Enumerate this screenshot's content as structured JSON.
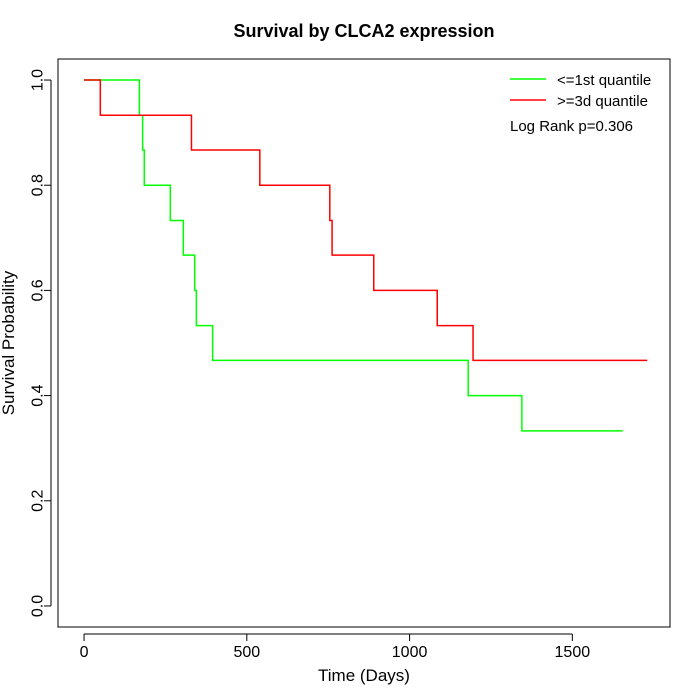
{
  "chart_data": {
    "type": "line",
    "title": "Survival by CLCA2 expression",
    "xlabel": "Time (Days)",
    "ylabel": "Survival Probability",
    "xlim": [
      -80,
      1800
    ],
    "ylim": [
      -0.04,
      1.04
    ],
    "x_ticks": [
      0,
      500,
      1000,
      1500
    ],
    "y_ticks": [
      0.0,
      0.2,
      0.4,
      0.6,
      0.8,
      1.0
    ],
    "x_tick_labels": [
      "0",
      "500",
      "1000",
      "1500"
    ],
    "y_tick_labels": [
      "0.0",
      "0.2",
      "0.4",
      "0.6",
      "0.8",
      "1.0"
    ],
    "grid": false,
    "legend_position": "top-right",
    "annotation": "Log Rank p=0.306",
    "series": [
      {
        "name": "<=1st quantile",
        "color": "#00ff00",
        "step": true,
        "x": [
          0,
          170,
          180,
          185,
          265,
          305,
          340,
          345,
          395,
          1180,
          1345,
          1655
        ],
        "y": [
          1.0,
          0.933,
          0.867,
          0.8,
          0.733,
          0.667,
          0.6,
          0.533,
          0.467,
          0.4,
          0.333,
          0.333
        ]
      },
      {
        "name": ">=3d quantile",
        "color": "#ff0000",
        "step": true,
        "x": [
          0,
          50,
          330,
          540,
          755,
          762,
          890,
          1085,
          1195,
          1730
        ],
        "y": [
          1.0,
          0.933,
          0.867,
          0.8,
          0.733,
          0.667,
          0.6,
          0.533,
          0.467,
          0.467
        ]
      }
    ]
  }
}
